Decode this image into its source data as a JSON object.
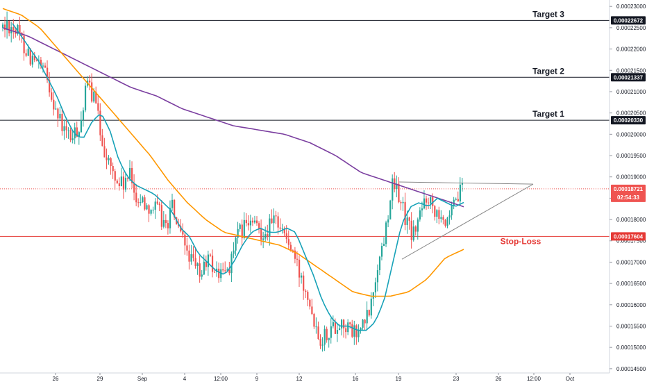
{
  "chart_data": {
    "type": "candlestick",
    "title": "",
    "ylim": [
      0.000144,
      0.0002315
    ],
    "x_ticks": [
      "26",
      "29",
      "Sep",
      "4",
      "12:00",
      "9",
      "12",
      "16",
      "19",
      "23",
      "26",
      "12:00",
      "Oct"
    ],
    "y_ticks": [
      "0.00023000",
      "0.00022500",
      "0.00022000",
      "0.00021500",
      "0.00021000",
      "0.00020500",
      "0.00020000",
      "0.00019500",
      "0.00019000",
      "0.00018500",
      "0.00018000",
      "0.00017500",
      "0.00017000",
      "0.00016500",
      "0.00016000",
      "0.00015500",
      "0.00015000",
      "0.00014500"
    ],
    "levels": [
      {
        "name": "Target 3",
        "value": 0.00022672,
        "label": "0.00022672",
        "color": "#131722"
      },
      {
        "name": "Target 2",
        "value": 0.00021337,
        "label": "0.00021337",
        "color": "#131722"
      },
      {
        "name": "Target 1",
        "value": 0.0002033,
        "label": "0.00020330",
        "color": "#131722"
      },
      {
        "name": "Stop-Loss",
        "value": 0.00017604,
        "label": "0.00017604",
        "color": "#e53935"
      }
    ],
    "last_price": {
      "value": 0.00018721,
      "label": "0.00018721",
      "countdown": "02:54:33",
      "color": "#ef5350"
    },
    "colors": {
      "up": "#26a69a",
      "down": "#ef5350",
      "ema_fast": "#17a2b8",
      "ma_mid": "#ff9800",
      "ma_slow": "#7b3fa0",
      "triangle": "#888888"
    },
    "price_path": [
      0.000225,
      0.000226,
      0.000224,
      0.000221,
      0.000218,
      0.000216,
      0.000214,
      0.000209,
      0.000203,
      0.0002,
      0.000199,
      0.000203,
      0.000212,
      0.000208,
      0.000199,
      0.000193,
      0.000189,
      0.000188,
      0.00019,
      0.000185,
      0.000184,
      0.000183,
      0.000182,
      0.000178,
      0.000183,
      0.000176,
      0.000173,
      0.000169,
      0.000167,
      0.000171,
      0.000168,
      0.000167,
      0.000169,
      0.000175,
      0.000178,
      0.000179,
      0.000178,
      0.000177,
      0.000179,
      0.00018,
      0.000176,
      0.000172,
      0.000167,
      0.000164,
      0.000157,
      0.000152,
      0.000154,
      0.000155,
      0.000156,
      0.000154,
      0.000153,
      0.000155,
      0.000159,
      0.000169,
      0.000176,
      0.000188,
      0.000186,
      0.00018,
      0.000176,
      0.000181,
      0.000186,
      0.000183,
      0.000182,
      0.000178,
      0.000184,
      0.000187
    ],
    "ema_fast_path": [
      0.000226,
      0.000223,
      0.00022,
      0.000217,
      0.000213,
      0.000209,
      0.000204,
      0.0002,
      0.000199,
      0.000203,
      0.000205,
      0.000201,
      0.000194,
      0.00019,
      0.000188,
      0.000187,
      0.000186,
      0.000184,
      0.000182,
      0.000178,
      0.000176,
      0.000172,
      0.00017,
      0.000168,
      0.000167,
      0.00017,
      0.000174,
      0.000177,
      0.000178,
      0.000177,
      0.000177,
      0.000178,
      0.000177,
      0.000172,
      0.000167,
      0.000161,
      0.000157,
      0.000155,
      0.000155,
      0.000154,
      0.000154,
      0.000156,
      0.000161,
      0.00017,
      0.000179,
      0.000183,
      0.000184,
      0.000183,
      0.000185,
      0.000184,
      0.000183,
      0.000184
    ],
    "ma_mid_path": [
      0.0002295,
      0.000228,
      0.000225,
      0.00022,
      0.000215,
      0.00021,
      0.000205,
      0.0002,
      0.000195,
      0.000189,
      0.000184,
      0.00018,
      0.000177,
      0.000176,
      0.000175,
      0.000174,
      0.000172,
      0.000169,
      0.000166,
      0.000163,
      0.000162,
      0.000162,
      0.000163,
      0.000166,
      0.000171,
      0.000173
    ],
    "ma_slow_path": [
      0.000225,
      0.000223,
      0.00022,
      0.000217,
      0.000214,
      0.000211,
      0.000209,
      0.000206,
      0.000204,
      0.000202,
      0.000201,
      0.0002,
      0.000198,
      0.000195,
      0.000191,
      0.000189,
      0.000187,
      0.000185,
      0.000183
    ]
  }
}
